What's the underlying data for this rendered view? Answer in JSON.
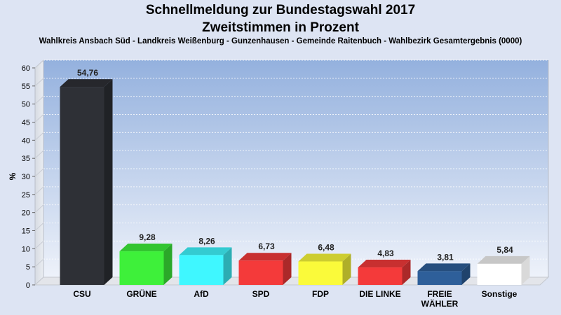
{
  "header": {
    "title_line_1": "Schnellmeldung zur Bundestagswahl 2017",
    "title_line_2": "Zweitstimmen in Prozent",
    "subtitle": "Wahlkreis Ansbach Süd - Landkreis Weißenburg - Gunzenhausen - Gemeinde Raitenbuch - Wahlbezirk Gesamtergebnis (0000)"
  },
  "chart_data": {
    "type": "bar",
    "title": "Schnellmeldung zur Bundestagswahl 2017",
    "subtitle": "Zweitstimmen in Prozent",
    "ylabel": "%",
    "xlabel": "",
    "ylim": [
      0,
      60
    ],
    "yticks": [
      0,
      5,
      10,
      15,
      20,
      25,
      30,
      35,
      40,
      45,
      50,
      55,
      60
    ],
    "grid": true,
    "categories": [
      "CSU",
      "GRÜNE",
      "AfD",
      "SPD",
      "FDP",
      "DIE LINKE",
      "FREIE WÄHLER",
      "Sonstige"
    ],
    "category_lines": [
      [
        "CSU"
      ],
      [
        "GRÜNE"
      ],
      [
        "AfD"
      ],
      [
        "SPD"
      ],
      [
        "FDP"
      ],
      [
        "DIE LINKE"
      ],
      [
        "FREIE",
        "WÄHLER"
      ],
      [
        "Sonstige"
      ]
    ],
    "values": [
      54.76,
      9.28,
      8.26,
      6.73,
      6.48,
      4.83,
      3.81,
      5.84
    ],
    "value_labels": [
      "54,76",
      "9,28",
      "8,26",
      "6,73",
      "6,48",
      "4,83",
      "3,81",
      "5,84"
    ],
    "colors": [
      "#2e3036",
      "#3ef03a",
      "#3ff7ff",
      "#f43a3a",
      "#fafa3a",
      "#f43a3a",
      "#2e5f9a",
      "#ffffff"
    ]
  }
}
